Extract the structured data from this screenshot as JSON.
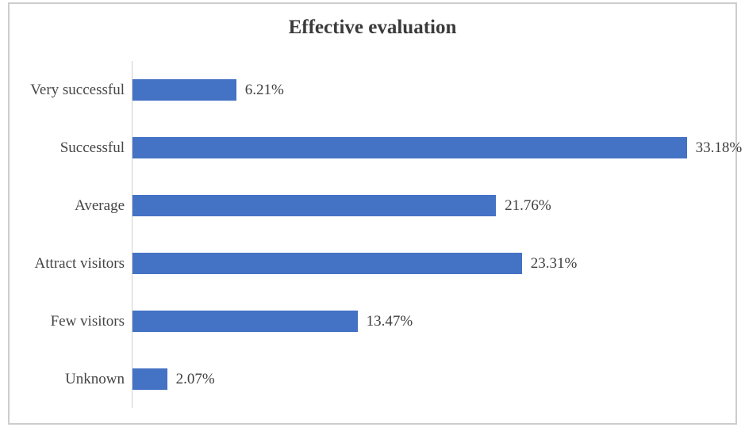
{
  "chart": {
    "colors": {
      "bar": "#4472C4",
      "axis_line": "#CFCFCF",
      "frame_border": "#CDCDCD",
      "title_text": "#3B3B3B",
      "label_text": "#454545"
    }
  },
  "chart_data": {
    "type": "bar",
    "orientation": "horizontal",
    "title": "Effective evaluation",
    "categories": [
      "Very successful",
      "Successful",
      "Average",
      "Attract visitors",
      "Few visitors",
      "Unknown"
    ],
    "values": [
      6.21,
      33.18,
      21.76,
      23.31,
      13.47,
      2.07
    ],
    "value_labels": [
      "6.21%",
      "33.18%",
      "21.76%",
      "23.31%",
      "13.47%",
      "2.07%"
    ],
    "xlabel": "",
    "ylabel": "",
    "xlim": [
      0,
      36
    ],
    "grid": false,
    "legend": false,
    "data_labels_position": "outside-end"
  }
}
